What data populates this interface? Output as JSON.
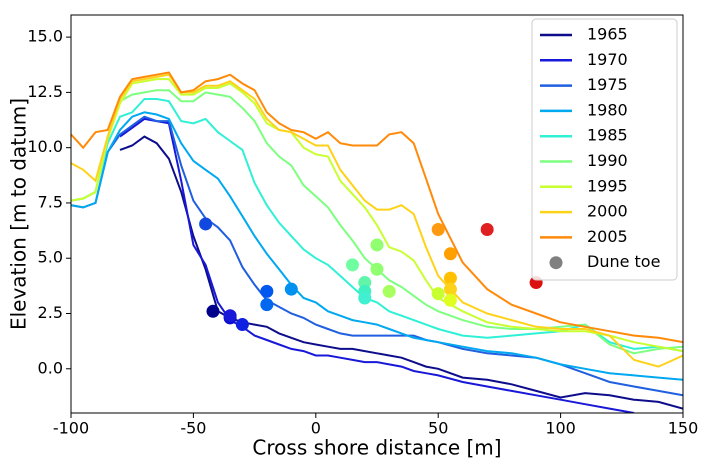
{
  "chart_data": {
    "type": "line",
    "x_label": "Cross shore distance [m]",
    "y_label": "Elevation [m to datum]",
    "xlim": [
      -100,
      150
    ],
    "ylim": [
      -2,
      16
    ],
    "xticks": [
      -100,
      -50,
      0,
      50,
      100,
      150
    ],
    "yticks": [
      {
        "value": 0,
        "label": "0.0"
      },
      {
        "value": 2.5,
        "label": "2.5"
      },
      {
        "value": 5,
        "label": "5.0"
      },
      {
        "value": 7.5,
        "label": "7.5"
      },
      {
        "value": 10,
        "label": "10.0"
      },
      {
        "value": 12.5,
        "label": "12.5"
      },
      {
        "value": 15,
        "label": "15.0"
      }
    ],
    "legend": "upper right",
    "x": [
      -100,
      -95,
      -90,
      -85,
      -80,
      -75,
      -70,
      -65,
      -60,
      -55,
      -50,
      -45,
      -40,
      -35,
      -30,
      -25,
      -20,
      -15,
      -10,
      -5,
      0,
      5,
      10,
      15,
      20,
      25,
      30,
      35,
      40,
      45,
      50,
      60,
      70,
      80,
      90,
      100,
      110,
      120,
      130,
      140,
      150
    ],
    "series": [
      {
        "name": "1965",
        "color": "#0d0d8c",
        "values": [
          null,
          null,
          null,
          null,
          9.9,
          10.1,
          10.5,
          10.2,
          9.5,
          8.0,
          6.0,
          4.5,
          2.6,
          2.3,
          2.1,
          2.0,
          1.9,
          1.6,
          1.4,
          1.2,
          1.1,
          1.0,
          0.9,
          0.9,
          0.8,
          0.7,
          0.6,
          0.5,
          0.3,
          0.1,
          0.0,
          -0.4,
          -0.5,
          -0.7,
          -1.0,
          -1.3,
          -1.1,
          -1.2,
          -1.4,
          -1.5,
          -1.8
        ]
      },
      {
        "name": "1970",
        "color": "#1818d8",
        "values": [
          null,
          null,
          null,
          null,
          10.5,
          10.9,
          11.3,
          11.2,
          11.1,
          8.5,
          5.6,
          4.7,
          3.0,
          2.2,
          1.9,
          1.5,
          1.3,
          1.1,
          0.9,
          0.8,
          0.6,
          0.6,
          0.5,
          0.4,
          0.3,
          0.3,
          0.2,
          0.1,
          -0.1,
          -0.2,
          -0.3,
          -0.6,
          -0.8,
          -1.0,
          -1.2,
          -1.4,
          -1.6,
          -1.8,
          -2.0,
          null,
          null
        ]
      },
      {
        "name": "1975",
        "color": "#1f5fe0",
        "values": [
          7.4,
          7.3,
          7.5,
          9.8,
          10.6,
          11.0,
          11.4,
          11.2,
          11.2,
          9.2,
          7.6,
          6.8,
          6.4,
          5.8,
          4.6,
          3.8,
          3.1,
          2.8,
          2.5,
          2.3,
          2.0,
          1.8,
          1.6,
          1.5,
          1.5,
          1.5,
          1.5,
          1.5,
          1.5,
          1.3,
          1.2,
          0.9,
          0.7,
          0.6,
          0.5,
          0.2,
          -0.2,
          -0.6,
          -0.8,
          -1.0,
          -1.2
        ]
      },
      {
        "name": "1980",
        "color": "#00a8f0",
        "values": [
          7.4,
          7.3,
          7.5,
          9.8,
          10.8,
          11.4,
          11.6,
          11.5,
          11.3,
          10.2,
          9.4,
          9.0,
          8.6,
          7.8,
          6.9,
          6.0,
          5.2,
          4.5,
          3.8,
          3.2,
          3.0,
          2.6,
          2.4,
          2.2,
          2.1,
          2.0,
          1.8,
          1.6,
          1.4,
          1.3,
          1.2,
          1.0,
          0.8,
          0.7,
          0.5,
          0.2,
          0.0,
          -0.2,
          -0.3,
          -0.4,
          -0.5
        ]
      },
      {
        "name": "1985",
        "color": "#30f0d5",
        "values": [
          7.6,
          7.7,
          8.0,
          10.2,
          11.4,
          11.6,
          12.2,
          12.2,
          12.1,
          11.2,
          11.1,
          11.3,
          10.7,
          10.3,
          9.9,
          8.4,
          7.4,
          6.6,
          6.0,
          5.4,
          5.0,
          4.7,
          4.2,
          3.7,
          3.2,
          3.0,
          2.6,
          2.4,
          2.2,
          2.0,
          1.8,
          1.5,
          1.4,
          1.5,
          1.6,
          1.7,
          2.0,
          1.2,
          0.9,
          1.0,
          0.8
        ]
      },
      {
        "name": "1990",
        "color": "#7dff80",
        "values": [
          7.6,
          7.7,
          8.0,
          10.5,
          12.1,
          12.4,
          12.5,
          12.6,
          12.6,
          12.1,
          12.1,
          12.5,
          12.4,
          12.3,
          11.8,
          11.2,
          10.2,
          9.6,
          9.2,
          8.3,
          7.8,
          7.3,
          6.5,
          5.8,
          5.0,
          4.5,
          4.0,
          3.7,
          3.3,
          2.9,
          2.6,
          2.2,
          1.9,
          1.8,
          1.8,
          1.9,
          2.0,
          1.1,
          0.7,
          0.9,
          1.0
        ]
      },
      {
        "name": "1995",
        "color": "#c8ff30",
        "values": [
          7.6,
          7.7,
          8.0,
          10.4,
          12.0,
          12.9,
          13.0,
          13.1,
          13.1,
          12.4,
          12.4,
          12.7,
          12.7,
          12.9,
          12.5,
          12.0,
          11.1,
          10.8,
          10.7,
          10.0,
          9.7,
          9.6,
          8.5,
          7.9,
          7.3,
          6.5,
          5.5,
          5.3,
          4.9,
          4.0,
          3.2,
          2.6,
          2.1,
          1.9,
          1.8,
          1.7,
          1.7,
          1.5,
          1.2,
          1.0,
          0.8
        ]
      },
      {
        "name": "2000",
        "color": "#ffd21a",
        "values": [
          9.3,
          9.0,
          8.5,
          10.5,
          12.2,
          13.0,
          13.1,
          13.2,
          13.3,
          12.5,
          12.5,
          12.8,
          12.8,
          13.0,
          12.6,
          12.2,
          11.3,
          10.8,
          10.7,
          10.4,
          10.1,
          10.1,
          9.0,
          8.3,
          7.6,
          7.2,
          7.2,
          7.4,
          7.0,
          5.5,
          4.2,
          3.0,
          2.5,
          2.2,
          1.9,
          1.8,
          1.8,
          1.5,
          0.4,
          0.1,
          0.6
        ]
      },
      {
        "name": "2005",
        "color": "#ff8a0a",
        "values": [
          10.6,
          10.0,
          10.7,
          10.8,
          12.3,
          13.1,
          13.2,
          13.3,
          13.4,
          12.5,
          12.6,
          13.0,
          13.1,
          13.3,
          12.9,
          12.6,
          11.6,
          11.1,
          10.8,
          10.7,
          10.4,
          10.7,
          10.2,
          10.1,
          10.1,
          10.1,
          10.6,
          10.7,
          10.2,
          8.6,
          7.0,
          4.8,
          3.6,
          2.9,
          2.5,
          2.1,
          1.9,
          1.7,
          1.5,
          1.4,
          1.2
        ]
      }
    ],
    "scatter": {
      "name": "Dune toe",
      "color": "#808080",
      "x": [
        -42,
        -35,
        -35,
        -30,
        -45,
        -20,
        -20,
        -10,
        15,
        20,
        20,
        20,
        25,
        25,
        30,
        50,
        50,
        55,
        55,
        55,
        55,
        70,
        90
      ],
      "values": [
        2.6,
        2.3,
        2.4,
        2.0,
        6.55,
        3.5,
        2.9,
        3.6,
        4.7,
        3.9,
        3.5,
        3.2,
        5.6,
        4.5,
        3.5,
        6.3,
        3.4,
        5.2,
        4.1,
        3.6,
        3.1,
        6.3,
        3.9
      ],
      "colors": [
        "#00008b",
        "#0a0ad0",
        "#1818d8",
        "#1020e0",
        "#1048e0",
        "#0058f0",
        "#0068f0",
        "#0090f0",
        "#70ffa0",
        "#60f5a8",
        "#40f0c0",
        "#40f0d0",
        "#90ff70",
        "#90ff70",
        "#a8ff60",
        "#ff9a10",
        "#c8ff30",
        "#ffa000",
        "#ffc000",
        "#ffd21a",
        "#e0ff20",
        "#e02020",
        "#dd1010"
      ]
    }
  }
}
